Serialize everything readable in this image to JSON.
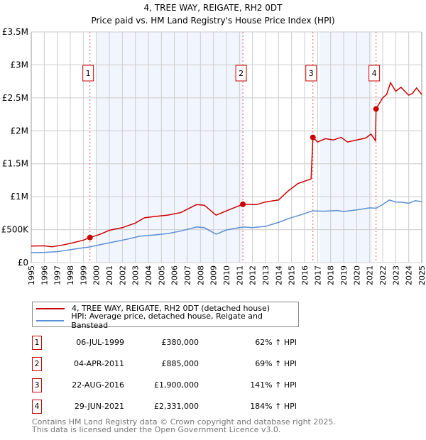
{
  "chart_data": {
    "type": "line",
    "title": "4, TREE WAY, REIGATE, RH2 0DT",
    "subtitle": "Price paid vs. HM Land Registry's House Price Index (HPI)",
    "xlim": [
      1995,
      2025
    ],
    "ylim": [
      0,
      3500000
    ],
    "x_ticks": [
      "1995",
      "1996",
      "1997",
      "1998",
      "1999",
      "2000",
      "2001",
      "2002",
      "2003",
      "2004",
      "2005",
      "2006",
      "2007",
      "2008",
      "2009",
      "2010",
      "2011",
      "2012",
      "2013",
      "2014",
      "2015",
      "2016",
      "2017",
      "2018",
      "2019",
      "2020",
      "2021",
      "2022",
      "2023",
      "2024",
      "2025"
    ],
    "y_ticks": [
      {
        "v": 0,
        "label": "£0"
      },
      {
        "v": 500000,
        "label": "£500K"
      },
      {
        "v": 1000000,
        "label": "£1M"
      },
      {
        "v": 1500000,
        "label": "£1.5M"
      },
      {
        "v": 2000000,
        "label": "£2M"
      },
      {
        "v": 2500000,
        "label": "£2.5M"
      },
      {
        "v": 3000000,
        "label": "£3M"
      },
      {
        "v": 3500000,
        "label": "£3.5M"
      }
    ],
    "grid": true,
    "shaded_ranges": [
      [
        2000.0,
        2011.25
      ],
      [
        2017.2,
        2021.2
      ]
    ],
    "series": [
      {
        "name": "4, TREE WAY, REIGATE, RH2 0DT (detached house)",
        "color": "#cc0000",
        "points": [
          [
            1995,
            250000
          ],
          [
            1996,
            255000
          ],
          [
            1996.6,
            240000
          ],
          [
            1997.5,
            270000
          ],
          [
            1998.2,
            300000
          ],
          [
            1999,
            340000
          ],
          [
            1999.51,
            380000
          ],
          [
            2000.3,
            430000
          ],
          [
            2001,
            490000
          ],
          [
            2002,
            530000
          ],
          [
            2003,
            600000
          ],
          [
            2003.7,
            680000
          ],
          [
            2004.5,
            700000
          ],
          [
            2005.5,
            720000
          ],
          [
            2006.5,
            760000
          ],
          [
            2007.4,
            850000
          ],
          [
            2007.7,
            880000
          ],
          [
            2008.3,
            870000
          ],
          [
            2009.2,
            720000
          ],
          [
            2010.3,
            810000
          ],
          [
            2011.26,
            885000
          ],
          [
            2012.3,
            880000
          ],
          [
            2013,
            920000
          ],
          [
            2014,
            950000
          ],
          [
            2014.7,
            1080000
          ],
          [
            2015.5,
            1200000
          ],
          [
            2016.5,
            1270000
          ],
          [
            2016.64,
            1900000
          ],
          [
            2017,
            1830000
          ],
          [
            2017.6,
            1880000
          ],
          [
            2018.2,
            1860000
          ],
          [
            2018.8,
            1900000
          ],
          [
            2019.3,
            1830000
          ],
          [
            2020,
            1860000
          ],
          [
            2020.7,
            1890000
          ],
          [
            2021.1,
            1950000
          ],
          [
            2021.45,
            1850000
          ],
          [
            2021.49,
            2331000
          ],
          [
            2022,
            2500000
          ],
          [
            2022.3,
            2550000
          ],
          [
            2022.6,
            2730000
          ],
          [
            2023,
            2600000
          ],
          [
            2023.4,
            2660000
          ],
          [
            2024,
            2540000
          ],
          [
            2024.3,
            2570000
          ],
          [
            2024.6,
            2650000
          ],
          [
            2025,
            2550000
          ]
        ]
      },
      {
        "name": "HPI: Average price, detached house, Reigate and Banstead",
        "color": "#5b8fd4",
        "points": [
          [
            1995,
            150000
          ],
          [
            1996,
            155000
          ],
          [
            1997,
            165000
          ],
          [
            1998,
            195000
          ],
          [
            1999,
            225000
          ],
          [
            1999.5,
            237000
          ],
          [
            2000.5,
            280000
          ],
          [
            2001.5,
            320000
          ],
          [
            2002.5,
            360000
          ],
          [
            2003.3,
            400000
          ],
          [
            2004.5,
            420000
          ],
          [
            2005.5,
            440000
          ],
          [
            2006.5,
            480000
          ],
          [
            2007.7,
            540000
          ],
          [
            2008.3,
            530000
          ],
          [
            2009.2,
            430000
          ],
          [
            2010,
            495000
          ],
          [
            2011.25,
            540000
          ],
          [
            2012,
            530000
          ],
          [
            2013,
            550000
          ],
          [
            2014,
            610000
          ],
          [
            2014.8,
            670000
          ],
          [
            2015.8,
            730000
          ],
          [
            2016.6,
            785000
          ],
          [
            2017.5,
            780000
          ],
          [
            2018.5,
            790000
          ],
          [
            2019,
            775000
          ],
          [
            2020,
            800000
          ],
          [
            2021,
            830000
          ],
          [
            2021.5,
            825000
          ],
          [
            2022,
            880000
          ],
          [
            2022.5,
            950000
          ],
          [
            2023,
            920000
          ],
          [
            2023.5,
            915000
          ],
          [
            2024,
            900000
          ],
          [
            2024.5,
            940000
          ],
          [
            2025,
            925000
          ]
        ]
      }
    ],
    "sales": [
      {
        "num": "1",
        "x": 1999.51,
        "value": 380000,
        "date": "06-JUL-1999",
        "price": "£380,000",
        "hpi": "62% ↑ HPI"
      },
      {
        "num": "2",
        "x": 2011.26,
        "value": 885000,
        "date": "04-APR-2011",
        "price": "£885,000",
        "hpi": "69% ↑ HPI"
      },
      {
        "num": "3",
        "x": 2016.64,
        "value": 1900000,
        "date": "22-AUG-2016",
        "price": "£1,900,000",
        "hpi": "141% ↑ HPI"
      },
      {
        "num": "4",
        "x": 2021.49,
        "value": 2331000,
        "date": "29-JUN-2021",
        "price": "£2,331,000",
        "hpi": "184% ↑ HPI"
      }
    ],
    "legend": [
      "4, TREE WAY, REIGATE, RH2 0DT (detached house)",
      "HPI: Average price, detached house, Reigate and Banstead"
    ],
    "legend_position": "below"
  },
  "footer": [
    "Contains HM Land Registry data © Crown copyright and database right 2025.",
    "This data is licensed under the Open Government Licence v3.0."
  ]
}
